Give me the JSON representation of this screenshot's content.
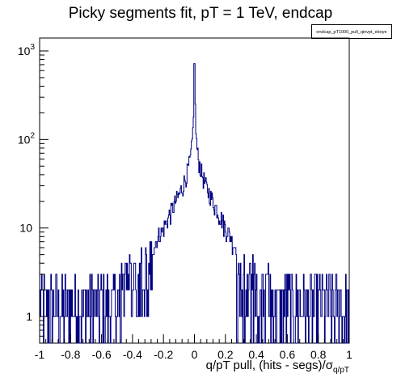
{
  "chart_data": {
    "type": "histogram",
    "title": "Picky segments fit, pT = 1 TeV, endcap",
    "legend_label": "endcap_pT1000_pull_qinvpt_eboye",
    "xlabel": "q/pT pull, (hits - segs)/σ",
    "xlabel_sub": "q/pT",
    "ylabel": "",
    "xlim": [
      -1,
      1
    ],
    "ylim": [
      0.5,
      1400
    ],
    "yscale": "log",
    "line_color": "#000080",
    "x_ticks": [
      "-1",
      "-0.8",
      "-0.6",
      "-0.4",
      "-0.2",
      "0",
      "0.2",
      "0.4",
      "0.6",
      "0.8",
      "1"
    ],
    "y_ticks": [
      {
        "value": 1,
        "label": "1",
        "exp": ""
      },
      {
        "value": 10,
        "label": "10",
        "exp": ""
      },
      {
        "value": 100,
        "label": "10",
        "exp": "2"
      },
      {
        "value": 1000,
        "label": "10",
        "exp": "3"
      }
    ],
    "bin_count": 500,
    "peak": {
      "x": 0.0,
      "value": 720
    },
    "core_profile": [
      {
        "dx": 0.0,
        "value": 720
      },
      {
        "dx": 0.004,
        "value": 320
      },
      {
        "dx": 0.008,
        "value": 150
      },
      {
        "dx": 0.012,
        "value": 105
      },
      {
        "dx": 0.02,
        "value": 70
      },
      {
        "dx": 0.03,
        "value": 55
      },
      {
        "dx": 0.05,
        "value": 40
      },
      {
        "dx": 0.08,
        "value": 28
      },
      {
        "dx": 0.12,
        "value": 20
      },
      {
        "dx": 0.16,
        "value": 14
      },
      {
        "dx": 0.2,
        "value": 10
      },
      {
        "dx": 0.25,
        "value": 7
      },
      {
        "dx": 0.3,
        "value": 5
      },
      {
        "dx": 0.4,
        "value": 3.5
      },
      {
        "dx": 0.6,
        "value": 2.5
      },
      {
        "dx": 1.0,
        "value": 2
      }
    ],
    "tail_values": [
      0,
      1,
      2,
      3
    ]
  }
}
